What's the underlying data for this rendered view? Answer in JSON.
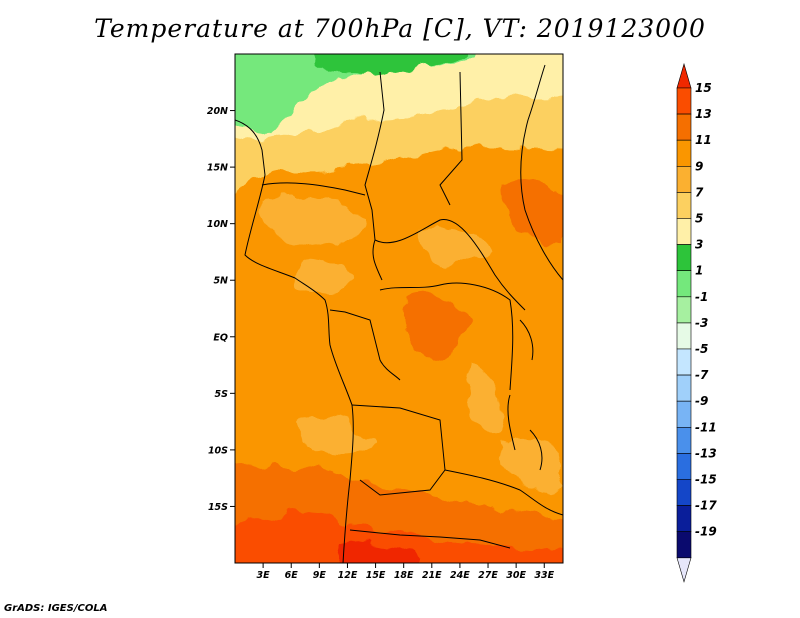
{
  "title": "Temperature at 700hPa [C], VT: 2019123000",
  "credit": "GrADS: IGES/COLA",
  "map": {
    "lon_range": [
      0,
      35
    ],
    "lat_range": [
      -20,
      25
    ],
    "lat_ticks": [
      {
        "label": "20N",
        "value": 20
      },
      {
        "label": "15N",
        "value": 15
      },
      {
        "label": "10N",
        "value": 10
      },
      {
        "label": "5N",
        "value": 5
      },
      {
        "label": "EQ",
        "value": 0
      },
      {
        "label": "5S",
        "value": -5
      },
      {
        "label": "10S",
        "value": -10
      },
      {
        "label": "15S",
        "value": -15
      }
    ],
    "lon_ticks": [
      {
        "label": "3E",
        "value": 3
      },
      {
        "label": "6E",
        "value": 6
      },
      {
        "label": "9E",
        "value": 9
      },
      {
        "label": "12E",
        "value": 12
      },
      {
        "label": "15E",
        "value": 15
      },
      {
        "label": "18E",
        "value": 18
      },
      {
        "label": "21E",
        "value": 21
      },
      {
        "label": "24E",
        "value": 24
      },
      {
        "label": "27E",
        "value": 27
      },
      {
        "label": "30E",
        "value": 30
      },
      {
        "label": "33E",
        "value": 33
      }
    ]
  },
  "colorbar": {
    "labels": [
      "15",
      "13",
      "11",
      "9",
      "7",
      "5",
      "3",
      "1",
      "-1",
      "-3",
      "-5",
      "-7",
      "-9",
      "-11",
      "-13",
      "-15",
      "-17",
      "-19"
    ],
    "colors": [
      "#f02800",
      "#fa4d00",
      "#f56f00",
      "#fa9600",
      "#fbb030",
      "#fcd060",
      "#fff0a8",
      "#2dc43a",
      "#74e87c",
      "#a6f0a0",
      "#e6fae6",
      "#c4e6ff",
      "#a0d0fa",
      "#78b4f5",
      "#4a90eb",
      "#2a6ee0",
      "#1446c8",
      "#0a1e9a",
      "#0a0a6e",
      "#e6e6fa"
    ]
  }
}
